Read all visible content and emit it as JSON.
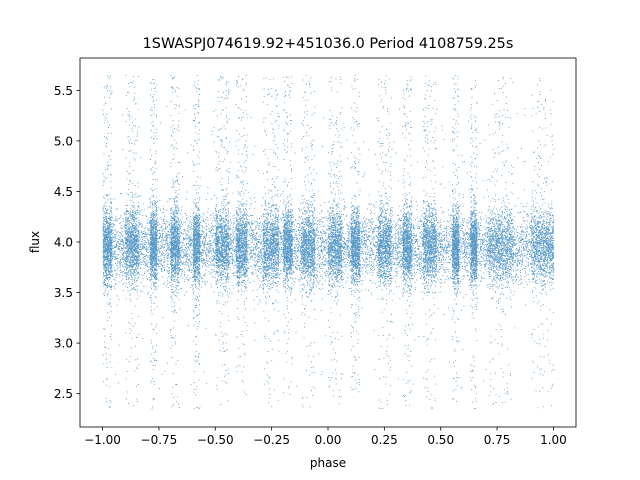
{
  "chart_data": {
    "type": "scatter",
    "title": "1SWASPJ074619.92+451036.0 Period 4108759.25s",
    "xlabel": "phase",
    "ylabel": "flux",
    "xlim": [
      -1.1,
      1.1
    ],
    "ylim": [
      2.17,
      5.82
    ],
    "xticks": [
      -1.0,
      -0.75,
      -0.5,
      -0.25,
      0.0,
      0.25,
      0.5,
      0.75,
      1.0
    ],
    "xtick_labels": [
      "−1.00",
      "−0.75",
      "−0.50",
      "−0.25",
      "0.00",
      "0.25",
      "0.50",
      "0.75",
      "1.00"
    ],
    "yticks": [
      2.5,
      3.0,
      3.5,
      4.0,
      4.5,
      5.0,
      5.5
    ],
    "ytick_labels": [
      "2.5",
      "3.0",
      "3.5",
      "4.0",
      "4.5",
      "5.0",
      "5.5"
    ],
    "grid": false,
    "legend": "none",
    "point_color": "#1f77b4",
    "phase_range": [
      -1.0,
      1.0
    ],
    "baseline_flux": 3.95,
    "typical_spread": [
      3.6,
      4.3
    ],
    "outlier_range": [
      2.35,
      5.65
    ],
    "dense_phase_bands": [
      [
        -1.0,
        -0.96
      ],
      [
        -0.9,
        -0.84
      ],
      [
        -0.79,
        -0.76
      ],
      [
        -0.7,
        -0.66
      ],
      [
        -0.6,
        -0.57
      ],
      [
        -0.5,
        -0.44
      ],
      [
        -0.41,
        -0.36
      ],
      [
        -0.29,
        -0.22
      ],
      [
        -0.2,
        -0.16
      ],
      [
        -0.12,
        -0.06
      ],
      [
        0.0,
        0.06
      ],
      [
        0.1,
        0.14
      ],
      [
        0.22,
        0.28
      ],
      [
        0.33,
        0.37
      ],
      [
        0.42,
        0.48
      ],
      [
        0.55,
        0.58
      ],
      [
        0.63,
        0.66
      ],
      [
        0.71,
        0.82
      ],
      [
        0.9,
        1.0
      ]
    ]
  }
}
